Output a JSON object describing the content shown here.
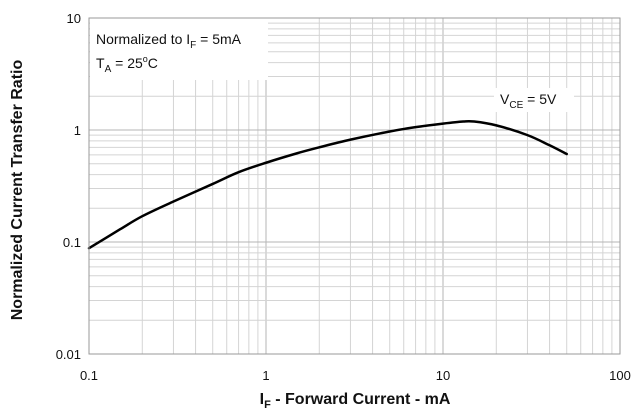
{
  "chart_data": {
    "type": "line",
    "x_scale": "log",
    "y_scale": "log",
    "xlim": [
      0.1,
      100
    ],
    "ylim": [
      0.01,
      10
    ],
    "grid": true,
    "x_tick_labels": [
      "0.1",
      "1",
      "10",
      "100"
    ],
    "y_tick_labels": [
      "0.01",
      "0.1",
      "1",
      "10"
    ],
    "xlabel": {
      "main": "I",
      "sub": "F",
      "rest": " - Forward Current - mA"
    },
    "ylabel": "Normalized Current Transfer Ratio",
    "annotations": {
      "condition_line1": {
        "pre": "Normalized to I",
        "sub": "F",
        "post": " = 5mA"
      },
      "condition_line2": {
        "pre": "T",
        "sub": "A",
        "mid": " = 25",
        "sup": "o",
        "post": "C"
      },
      "curve_label": {
        "pre": "V",
        "sub": "CE",
        "post": " = 5V"
      }
    },
    "series": [
      {
        "x": [
          0.1,
          0.15,
          0.2,
          0.3,
          0.5,
          0.7,
          1,
          1.5,
          2,
          3,
          5,
          7,
          10,
          13,
          15,
          20,
          30,
          40,
          50
        ],
        "y": [
          0.088,
          0.13,
          0.17,
          0.23,
          0.33,
          0.42,
          0.51,
          0.62,
          0.7,
          0.82,
          0.97,
          1.06,
          1.14,
          1.19,
          1.19,
          1.1,
          0.9,
          0.73,
          0.61
        ]
      }
    ]
  }
}
